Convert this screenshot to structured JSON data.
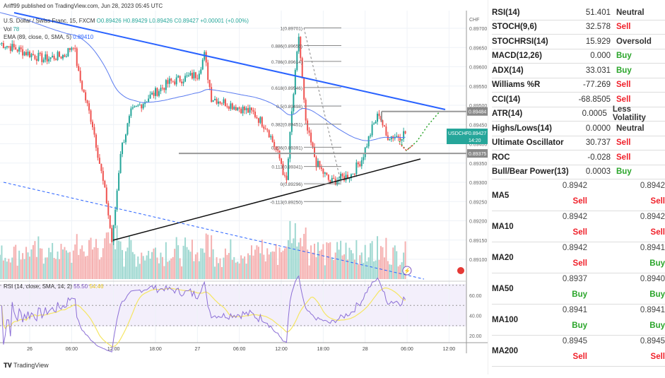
{
  "header": {
    "published": "Ariff99 published on TradingView.com, Jun 28, 2023 05:45 UTC",
    "symbol": "U.S. Dollar / Swiss Franc, 15, FXCM",
    "ohlc": "O0.89426 H0.89429 L0.89426 C0.89427 +0.00001 (+0.00%)",
    "vol_label": "Vol",
    "vol_value": "78",
    "ema_label": "EMA (89, close, 0, SMA, 5)",
    "ema_value": "0.89410",
    "rsi_label": "RSI (14, close, SMA, 14, 2)",
    "rsi_value": "55.50",
    "rsi_sma": "54.46"
  },
  "axis": {
    "currency": "CHF",
    "price_ticks": [
      "0.89700",
      "0.89650",
      "0.89600",
      "0.89550",
      "0.89500",
      "0.89450",
      "0.89400",
      "0.89350",
      "0.89300",
      "0.89250",
      "0.89200",
      "0.89150",
      "0.89100"
    ],
    "rsi_ticks": [
      "60.00",
      "40.00",
      "20.00"
    ],
    "time_ticks": [
      {
        "label": "26",
        "h": 0
      },
      {
        "label": "06:00",
        "h": 6
      },
      {
        "label": "12:00",
        "h": 12
      },
      {
        "label": "18:00",
        "h": 18
      },
      {
        "label": "27",
        "h": 24
      },
      {
        "label": "06:00",
        "h": 30
      },
      {
        "label": "12:00",
        "h": 36
      },
      {
        "label": "18:00",
        "h": 42
      },
      {
        "label": "28",
        "h": 48
      },
      {
        "label": "06:00",
        "h": 54
      },
      {
        "label": "12:00",
        "h": 60
      }
    ],
    "labels": {
      "resistance": "0.89484",
      "support": "0.89375",
      "symbol": "USDCHF",
      "last": "0.89427",
      "countdown": "14:20"
    }
  },
  "fib": [
    {
      "label": "1(0.89701)",
      "p": 0.89701
    },
    {
      "label": "0.886(0.89655)",
      "p": 0.89655
    },
    {
      "label": "0.786(0.89614)",
      "p": 0.89614
    },
    {
      "label": "0.618(0.89546)",
      "p": 0.89546
    },
    {
      "label": "0.5(0.89498)",
      "p": 0.89498
    },
    {
      "label": "0.382(0.89451)",
      "p": 0.89451
    },
    {
      "label": "0.236(0.89391)",
      "p": 0.89391
    },
    {
      "label": "0.113(0.89341)",
      "p": 0.89341
    },
    {
      "label": "0(0.89296)",
      "p": 0.89296
    },
    {
      "label": "-0.113(0.89250)",
      "p": 0.8925
    }
  ],
  "chart_data": {
    "type": "candlestick",
    "interval": "15m",
    "price_path": [
      [
        -4,
        0.8966
      ],
      [
        2,
        0.8962
      ],
      [
        5,
        0.8963
      ],
      [
        6.3,
        0.8966
      ],
      [
        7,
        0.8958
      ],
      [
        9,
        0.8945
      ],
      [
        11,
        0.8925
      ],
      [
        11.8,
        0.8914
      ],
      [
        13,
        0.8938
      ],
      [
        14.5,
        0.8948
      ],
      [
        17,
        0.8952
      ],
      [
        20,
        0.8956
      ],
      [
        24,
        0.8958
      ],
      [
        25,
        0.8963
      ],
      [
        26,
        0.8952
      ],
      [
        29,
        0.895
      ],
      [
        32,
        0.8948
      ],
      [
        34,
        0.8944
      ],
      [
        36,
        0.8935
      ],
      [
        36.7,
        0.8929
      ],
      [
        37.5,
        0.8948
      ],
      [
        38.5,
        0.8968
      ],
      [
        39.5,
        0.8945
      ],
      [
        41,
        0.8935
      ],
      [
        43,
        0.893
      ],
      [
        46,
        0.8932
      ],
      [
        47.5,
        0.8936
      ],
      [
        49,
        0.8944
      ],
      [
        50,
        0.8948
      ],
      [
        51,
        0.8942
      ],
      [
        53,
        0.8942
      ],
      [
        53.75,
        0.8943
      ]
    ]
  },
  "watermark": "TradingView",
  "oscillators": [
    {
      "name": "RSI(14)",
      "value": "51.401",
      "signal": "Neutral",
      "cls": ""
    },
    {
      "name": "STOCH(9,6)",
      "value": "32.578",
      "signal": "Sell",
      "cls": "sell"
    },
    {
      "name": "STOCHRSI(14)",
      "value": "15.929",
      "signal": "Oversold",
      "cls": ""
    },
    {
      "name": "MACD(12,26)",
      "value": "0.000",
      "signal": "Buy",
      "cls": "buy"
    },
    {
      "name": "ADX(14)",
      "value": "33.031",
      "signal": "Buy",
      "cls": "buy"
    },
    {
      "name": "Williams %R",
      "value": "-77.269",
      "signal": "Sell",
      "cls": "sell"
    },
    {
      "name": "CCI(14)",
      "value": "-68.8505",
      "signal": "Sell",
      "cls": "sell"
    },
    {
      "name": "ATR(14)",
      "value": "0.0005",
      "signal": "Less Volatility",
      "cls": ""
    },
    {
      "name": "Highs/Lows(14)",
      "value": "0.0000",
      "signal": "Neutral",
      "cls": ""
    },
    {
      "name": "Ultimate Oscillator",
      "value": "30.737",
      "signal": "Sell",
      "cls": "sell"
    },
    {
      "name": "ROC",
      "value": "-0.028",
      "signal": "Sell",
      "cls": "sell"
    },
    {
      "name": "Bull/Bear Power(13)",
      "value": "0.0003",
      "signal": "Buy",
      "cls": "buy"
    }
  ],
  "moving_averages": [
    {
      "name": "MA5",
      "simple": "0.8942",
      "simple_signal": "Sell",
      "exp": "0.8942",
      "exp_signal": "Sell"
    },
    {
      "name": "MA10",
      "simple": "0.8942",
      "simple_signal": "Sell",
      "exp": "0.8942",
      "exp_signal": "Sell"
    },
    {
      "name": "MA20",
      "simple": "0.8942",
      "simple_signal": "Sell",
      "exp": "0.8941",
      "exp_signal": "Buy"
    },
    {
      "name": "MA50",
      "simple": "0.8937",
      "simple_signal": "Buy",
      "exp": "0.8940",
      "exp_signal": "Buy"
    },
    {
      "name": "MA100",
      "simple": "0.8941",
      "simple_signal": "Buy",
      "exp": "0.8941",
      "exp_signal": "Buy"
    },
    {
      "name": "MA200",
      "simple": "0.8945",
      "simple_signal": "Sell",
      "exp": "0.8945",
      "exp_signal": "Sell"
    }
  ]
}
